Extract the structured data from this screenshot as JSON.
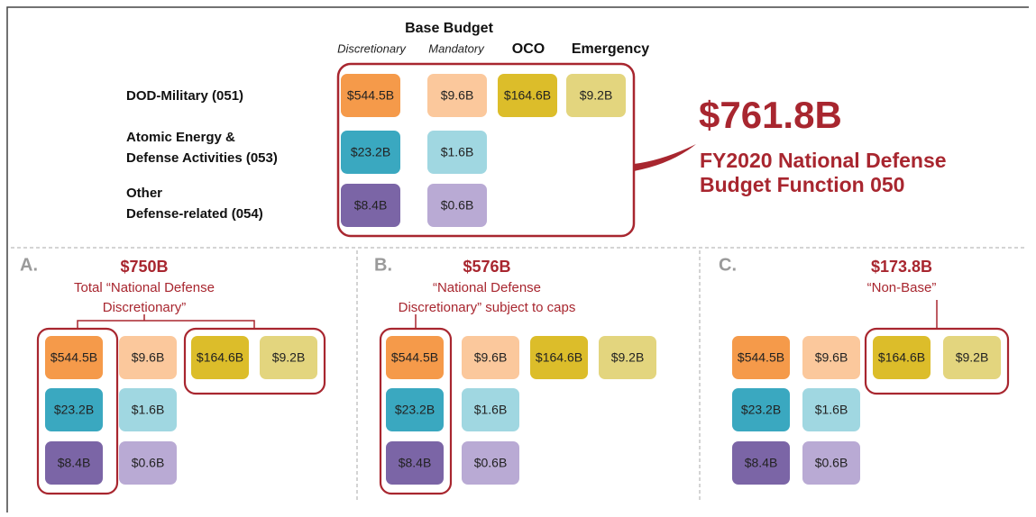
{
  "header": {
    "group": "Base Budget",
    "columns": [
      "Discretionary",
      "Mandatory",
      "OCO",
      "Emergency"
    ]
  },
  "rows": [
    {
      "label": [
        "DOD-Military (051)"
      ],
      "cells": [
        "$544.5B",
        "$9.6B",
        "$164.6B",
        "$9.2B"
      ]
    },
    {
      "label": [
        "Atomic Energy &",
        "Defense Activities (053)"
      ],
      "cells": [
        "$23.2B",
        "$1.6B",
        null,
        null
      ]
    },
    {
      "label": [
        "Other",
        "Defense-related (054)"
      ],
      "cells": [
        "$8.4B",
        "$0.6B",
        null,
        null
      ]
    }
  ],
  "total": {
    "amount": "$761.8B",
    "caption": [
      "FY2020 National Defense",
      "Budget Function 050"
    ]
  },
  "panels": [
    {
      "letter": "A.",
      "amount": "$750B",
      "caption": [
        "Total “National Defense",
        "Discretionary”"
      ]
    },
    {
      "letter": "B.",
      "amount": "$576B",
      "caption": [
        "“National Defense",
        "Discretionary” subject to caps"
      ]
    },
    {
      "letter": "C.",
      "amount": "$173.8B",
      "caption": [
        "“Non-Base”"
      ]
    }
  ]
}
